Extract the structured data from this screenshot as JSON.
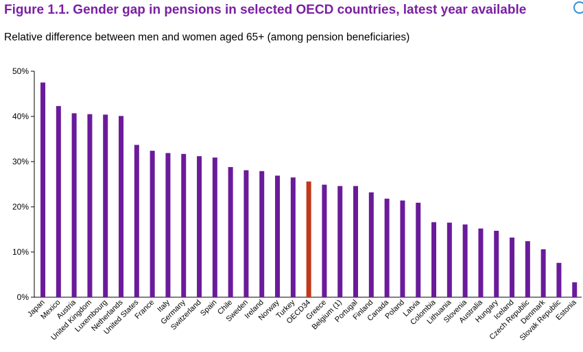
{
  "figure": {
    "title": "Figure 1.1. Gender gap in pensions in selected OECD countries, latest year available",
    "subtitle": "Relative difference between men and women aged 65+ (among pension beneficiaries)"
  },
  "colors": {
    "bar": "#6a1b9a",
    "highlight": "#c0391b",
    "title": "#7a1fa2"
  },
  "chart_data": {
    "type": "bar",
    "title": "Figure 1.1. Gender gap in pensions in selected OECD countries, latest year available",
    "subtitle": "Relative difference between men and women aged 65+ (among pension beneficiaries)",
    "xlabel": "",
    "ylabel": "",
    "ylim": [
      0,
      50
    ],
    "yticks": [
      0,
      10,
      20,
      30,
      40,
      50
    ],
    "ytick_labels": [
      "0%",
      "10%",
      "20%",
      "30%",
      "40%",
      "50%"
    ],
    "grid": false,
    "legend": "none",
    "highlight_category": "OECD34",
    "categories": [
      "Japan",
      "Mexico",
      "Austria",
      "United Kingdom",
      "Luxembourg",
      "Netherlands",
      "United States",
      "France",
      "Italy",
      "Germany",
      "Switzerland",
      "Spain",
      "Chile",
      "Sweden",
      "Ireland",
      "Norway",
      "Turkey",
      "OECD34",
      "Greece",
      "Belgium (1)",
      "Portugal",
      "Finland",
      "Canada",
      "Poland",
      "Latvia",
      "Colombia",
      "Lithuania",
      "Slovenia",
      "Australia",
      "Hungary",
      "Iceland",
      "Czech Republic",
      "Denmark",
      "Slovak Republic",
      "Estonia"
    ],
    "values": [
      47.5,
      42.3,
      40.7,
      40.5,
      40.4,
      40.1,
      33.7,
      32.4,
      31.9,
      31.7,
      31.2,
      30.9,
      28.8,
      28.1,
      27.9,
      26.9,
      26.5,
      25.6,
      24.9,
      24.6,
      24.6,
      23.2,
      21.8,
      21.4,
      20.9,
      16.6,
      16.5,
      16.1,
      15.2,
      14.7,
      13.2,
      12.4,
      10.6,
      7.6,
      3.3
    ]
  }
}
